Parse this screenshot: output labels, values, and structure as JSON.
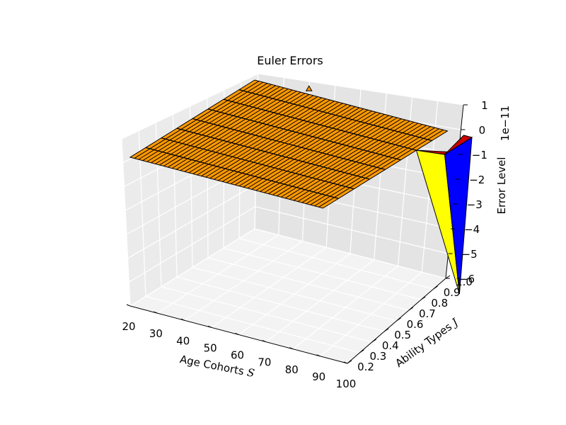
{
  "chart_data": {
    "type": "surface3d",
    "title": "Euler Errors",
    "xlabel": "Age Cohorts $S$",
    "ylabel": "Ability Types $J$",
    "zlabel": "Error Level",
    "z_offset_text": "1e−11",
    "xlim": [
      20,
      100
    ],
    "ylim": [
      0.2,
      1.0
    ],
    "zlim": [
      -6,
      1
    ],
    "x_ticks": [
      "20",
      "30",
      "40",
      "50",
      "60",
      "70",
      "80",
      "90",
      "100"
    ],
    "y_ticks": [
      "0.2",
      "0.3",
      "0.4",
      "0.5",
      "0.6",
      "0.7",
      "0.8",
      "0.9",
      "1.0"
    ],
    "z_ticks": [
      "1",
      "0",
      "−1",
      "−2",
      "−3",
      "−4",
      "−5",
      "−6"
    ],
    "z_unit": "1e-11",
    "surface": {
      "flat_level": 0,
      "flat_color": "#ff9900",
      "spike_region": {
        "x": 100,
        "y_range": [
          0.85,
          1.0
        ],
        "min_value": -6,
        "colors": [
          "#ffff00",
          "#0000ff",
          "#cc0000"
        ]
      }
    },
    "grid": true,
    "colors": {
      "pane_left": "#ebebeb",
      "pane_right": "#e4e4e4",
      "pane_floor": "#f3f3f3",
      "grid": "#ffffff",
      "edge": "#000000"
    }
  }
}
